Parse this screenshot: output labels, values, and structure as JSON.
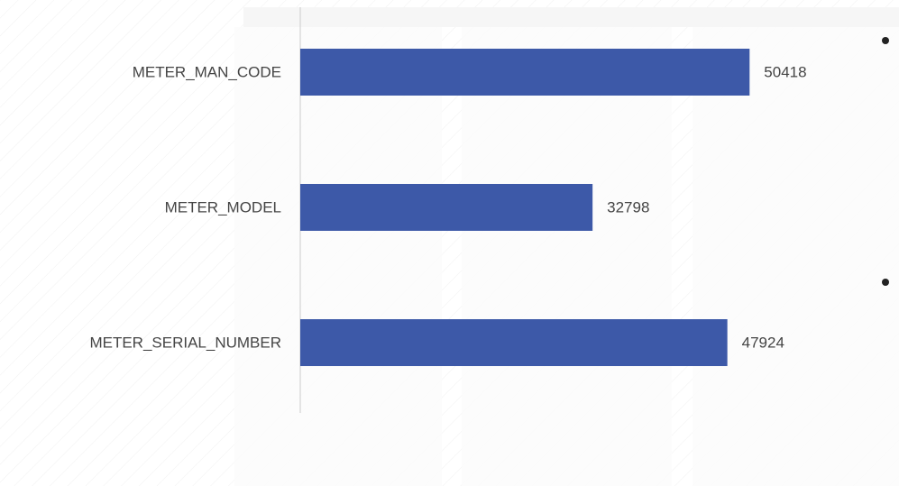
{
  "chart_data": {
    "type": "hbar",
    "categories": [
      "METER_MAN_CODE",
      "METER_MODEL",
      "METER_SERIAL_NUMBER"
    ],
    "values": [
      50418,
      32798,
      47924
    ],
    "color": "#3d59a8",
    "xlim": [
      0,
      60000
    ]
  }
}
